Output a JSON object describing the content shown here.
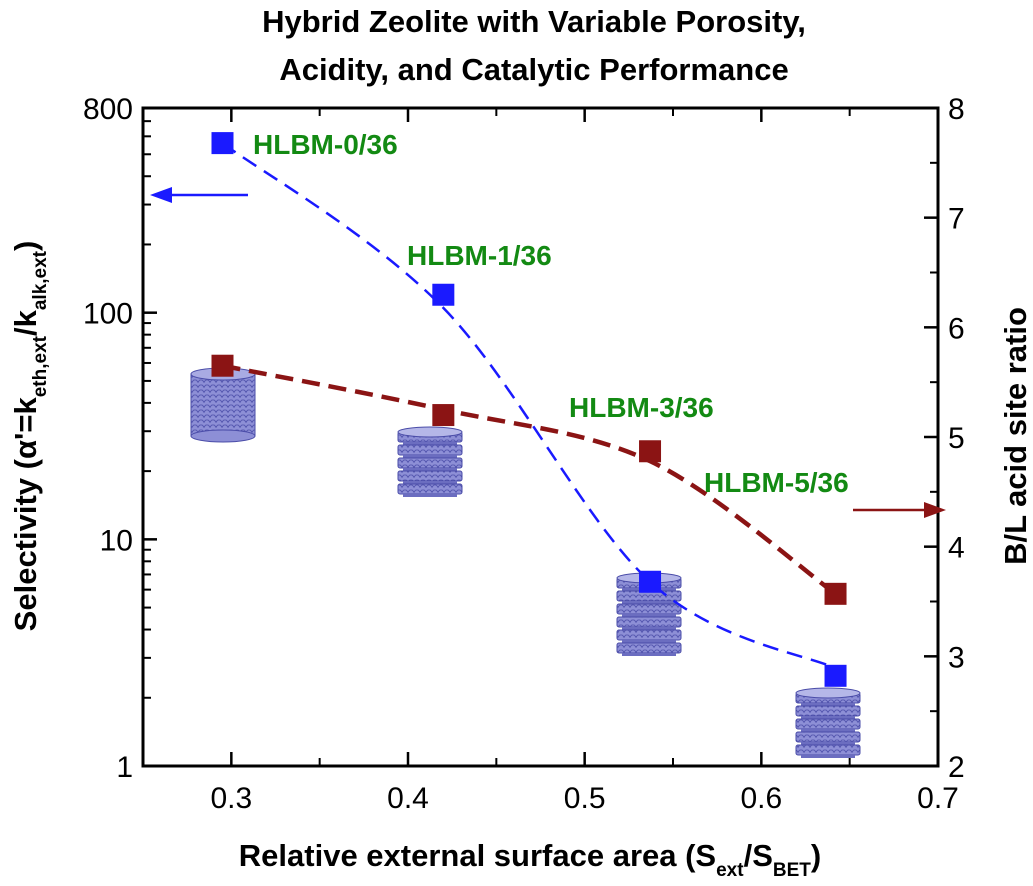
{
  "chart_data": {
    "type": "scatter",
    "title_lines": [
      "Hybrid  Zeolite with Variable Porosity,",
      "Acidity, and Catalytic Performance"
    ],
    "xlabel": {
      "main": "Relative external surface area (S",
      "sub1": "ext",
      "mid": "/S",
      "sub2": "BET",
      "end": ")"
    },
    "ylabel_left": {
      "main": "Selectivity (α'=k",
      "sub1": "eth,ext",
      "mid": "/k",
      "sub2": "alk,ext",
      "end": ")"
    },
    "ylabel_right": "B/L acid site ratio",
    "xlim": [
      0.25,
      0.7
    ],
    "ylim_left": [
      1,
      800
    ],
    "ylim_left_scale": "log",
    "ylim_right": [
      2,
      8
    ],
    "x_ticks": [
      "0.3",
      "0.4",
      "0.5",
      "0.6",
      "0.7"
    ],
    "y_left_ticks": [
      "1",
      "10",
      "100",
      "800"
    ],
    "y_right_ticks": [
      "2",
      "3",
      "4",
      "5",
      "6",
      "7",
      "8"
    ],
    "labels": [
      "HLBM-0/36",
      "HLBM-1/36",
      "HLBM-3/36",
      "HLBM-5/36"
    ],
    "series": [
      {
        "axis": "left",
        "color": "#1a1aff",
        "marker": "square",
        "line": "dashed",
        "x": [
          0.295,
          0.42,
          0.537,
          0.642
        ],
        "y": [
          560,
          120,
          6.5,
          2.5
        ],
        "fit_y": [
          560,
          105,
          6.5,
          2.7
        ]
      },
      {
        "axis": "right",
        "color": "#8b1414",
        "marker": "square",
        "line": "dashed",
        "x": [
          0.295,
          0.42,
          0.537,
          0.642
        ],
        "y": [
          5.65,
          5.2,
          4.87,
          3.57
        ],
        "fit_y": [
          5.65,
          5.25,
          4.78,
          3.57
        ]
      }
    ],
    "label_color": "#138a13",
    "arrows": [
      "left",
      "right"
    ]
  }
}
